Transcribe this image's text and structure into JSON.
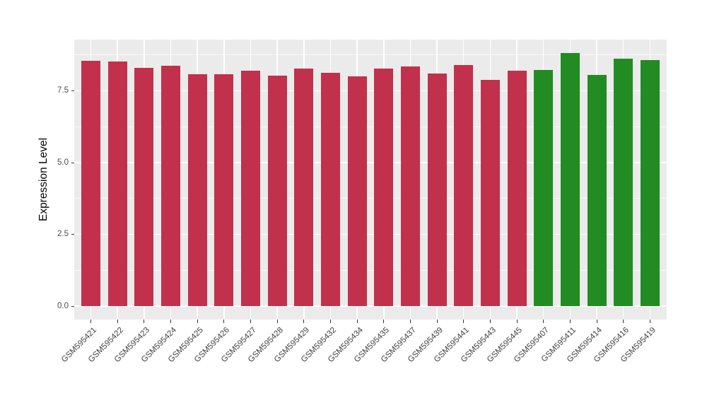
{
  "chart_data": {
    "type": "bar",
    "title": "",
    "xlabel": "",
    "ylabel": "Expression Level",
    "categories": [
      "GSM595421",
      "GSM595422",
      "GSM595423",
      "GSM595424",
      "GSM595425",
      "GSM595426",
      "GSM595427",
      "GSM595428",
      "GSM595429",
      "GSM595432",
      "GSM595434",
      "GSM595435",
      "GSM595437",
      "GSM595439",
      "GSM595441",
      "GSM595443",
      "GSM595445",
      "GSM595407",
      "GSM595411",
      "GSM595414",
      "GSM595416",
      "GSM595419"
    ],
    "values": [
      8.55,
      8.53,
      8.3,
      8.37,
      8.08,
      8.08,
      8.2,
      8.02,
      8.27,
      8.14,
      8.01,
      8.28,
      8.36,
      8.1,
      8.4,
      7.88,
      8.21,
      8.23,
      8.81,
      8.05,
      8.62,
      8.56
    ],
    "bar_colors": [
      "#C2314B",
      "#C2314B",
      "#C2314B",
      "#C2314B",
      "#C2314B",
      "#C2314B",
      "#C2314B",
      "#C2314B",
      "#C2314B",
      "#C2314B",
      "#C2314B",
      "#C2314B",
      "#C2314B",
      "#C2314B",
      "#C2314B",
      "#C2314B",
      "#C2314B",
      "#228B22",
      "#228B22",
      "#228B22",
      "#228B22",
      "#228B22"
    ],
    "y_tick_values": [
      0.0,
      2.5,
      5.0,
      7.5
    ],
    "y_tick_labels": [
      "0.0",
      "2.5",
      "5.0",
      "7.5"
    ],
    "y_minor_tick_values": [
      1.25,
      3.75,
      6.25,
      8.75
    ],
    "ylim": [
      -0.46,
      9.29
    ],
    "grid": "major and minor horizontal white lines, vertical white lines at category centers, on gray panel",
    "legend_position": "none",
    "x_label_rotation_degrees": 45
  },
  "colors": {
    "bar_red": "#C2314B",
    "bar_green": "#228B22",
    "panel_background": "#EBEBEB",
    "gridline": "#FFFFFF",
    "axis_text": "#4d4d4d",
    "axis_title": "#000000",
    "tick_mark": "#333333",
    "page_background": "#FFFFFF"
  }
}
